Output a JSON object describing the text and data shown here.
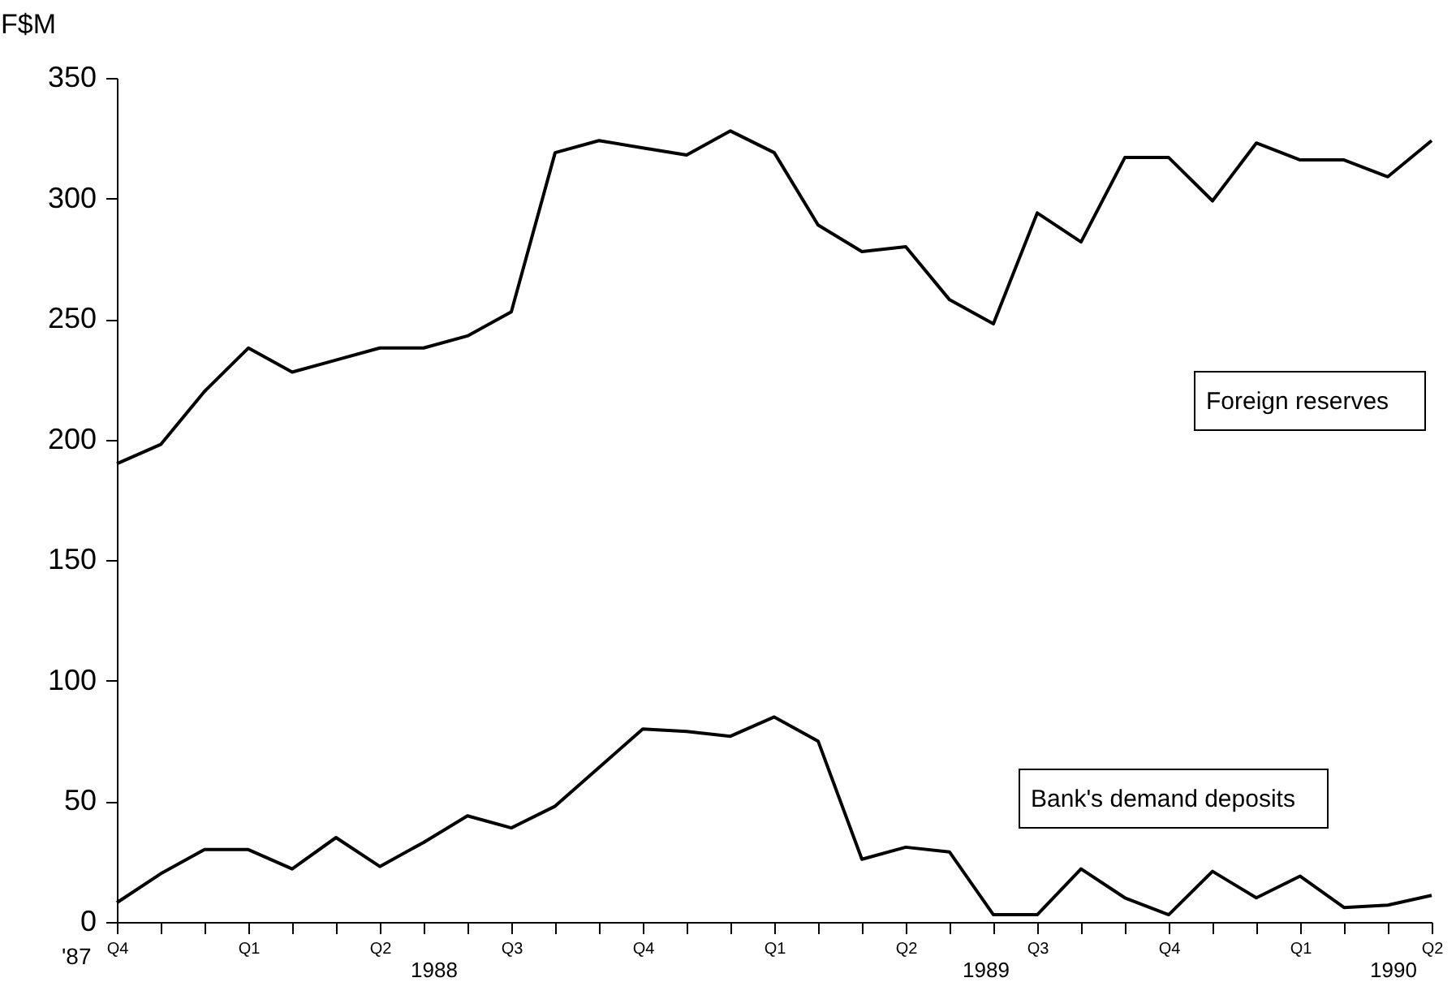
{
  "chart_data": {
    "type": "line",
    "ylabel": "F$M",
    "categories": [
      "Q4",
      null,
      null,
      "Q1",
      null,
      null,
      "Q2",
      null,
      null,
      "Q3",
      null,
      null,
      "Q4",
      null,
      null,
      "Q1",
      null,
      null,
      "Q2",
      null,
      null,
      "Q3",
      null,
      null,
      "Q4",
      null,
      null,
      "Q1",
      null,
      null,
      "Q2"
    ],
    "series": [
      {
        "name": "Foreign reserves",
        "color": "#000000",
        "values": [
          190,
          198,
          220,
          238,
          228,
          233,
          238,
          238,
          243,
          253,
          319,
          324,
          321,
          318,
          328,
          319,
          289,
          278,
          280,
          258,
          248,
          294,
          282,
          317,
          317,
          299,
          323,
          316,
          316,
          309,
          324
        ]
      },
      {
        "name": "Bank's demand deposits",
        "color": "#000000",
        "values": [
          8,
          20,
          30,
          30,
          22,
          35,
          23,
          33,
          44,
          39,
          48,
          64,
          80,
          79,
          77,
          85,
          75,
          26,
          31,
          29,
          3,
          3,
          22,
          10,
          3,
          21,
          10,
          19,
          6,
          7,
          11
        ]
      }
    ],
    "ylim": [
      0,
      350
    ],
    "yticks": [
      0,
      50,
      100,
      150,
      200,
      250,
      300,
      350
    ],
    "annotations": [
      "'87",
      "1988",
      "1989",
      "1990"
    ]
  }
}
